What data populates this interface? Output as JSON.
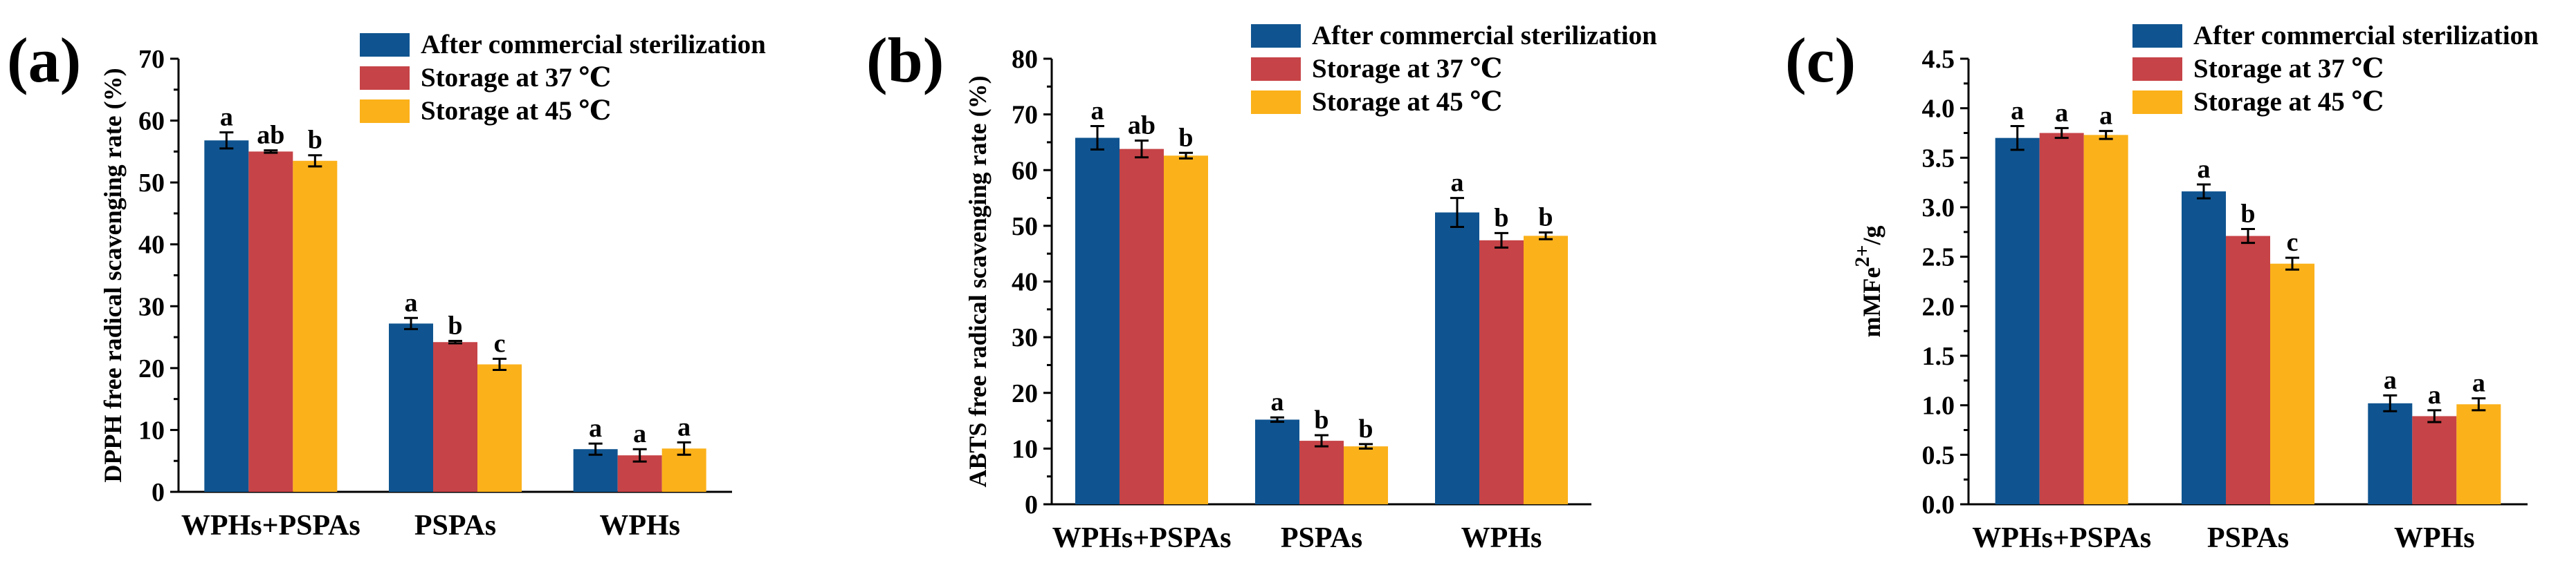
{
  "colors": {
    "series": [
      "#0f5490",
      "#c64347",
      "#fbb11a"
    ],
    "axis": "#000000",
    "background": "#ffffff"
  },
  "chart_data": [
    {
      "type": "bar",
      "panel": "(a)",
      "title": "",
      "xlabel": "",
      "ylabel": "DPPH free radical scavenging rate (%)",
      "ylim": [
        0,
        70
      ],
      "yticks": [
        0,
        10,
        20,
        30,
        40,
        50,
        60,
        70
      ],
      "categories": [
        "WPHs+PSPAs",
        "PSPAs",
        "WPHs"
      ],
      "legend": {
        "placement": "top-right"
      },
      "series": [
        {
          "name": "After commercial sterilization",
          "values": [
            56.8,
            27.2,
            6.9
          ],
          "errors": [
            1.3,
            0.9,
            0.9
          ],
          "labels": [
            "a",
            "a",
            "a"
          ]
        },
        {
          "name": "Storage at 37 ℃",
          "values": [
            55.0,
            24.2,
            5.9
          ],
          "errors": [
            0.2,
            0.2,
            1.0
          ],
          "labels": [
            "ab",
            "b",
            "a"
          ]
        },
        {
          "name": "Storage at 45 ℃",
          "values": [
            53.5,
            20.6,
            7.0
          ],
          "errors": [
            0.9,
            0.9,
            1.0
          ],
          "labels": [
            "b",
            "c",
            "a"
          ]
        }
      ]
    },
    {
      "type": "bar",
      "panel": "(b)",
      "title": "",
      "xlabel": "",
      "ylabel": "ABTS free radical scavenging rate (%)",
      "ylim": [
        0,
        80
      ],
      "yticks": [
        0,
        10,
        20,
        30,
        40,
        50,
        60,
        70,
        80
      ],
      "categories": [
        "WPHs+PSPAs",
        "PSPAs",
        "WPHs"
      ],
      "legend": {
        "placement": "top-right"
      },
      "series": [
        {
          "name": "After commercial sterilization",
          "values": [
            65.8,
            15.2,
            52.4
          ],
          "errors": [
            2.1,
            0.4,
            2.6
          ],
          "labels": [
            "a",
            "a",
            "a"
          ]
        },
        {
          "name": "Storage at 37 ℃",
          "values": [
            63.8,
            11.4,
            47.4
          ],
          "errors": [
            1.5,
            1.0,
            1.3
          ],
          "labels": [
            "ab",
            "b",
            "b"
          ]
        },
        {
          "name": "Storage at 45 ℃",
          "values": [
            62.6,
            10.4,
            48.2
          ],
          "errors": [
            0.5,
            0.4,
            0.6
          ],
          "labels": [
            "b",
            "b",
            "b"
          ]
        }
      ]
    },
    {
      "type": "bar",
      "panel": "(c)",
      "title": "",
      "xlabel": "",
      "ylabel": "mMFe2+/g",
      "ylabel_base": "mMFe",
      "ylabel_sup": "2+",
      "ylabel_end": "/g",
      "ylim": [
        0,
        4.5
      ],
      "yticks": [
        0.0,
        0.5,
        1.0,
        1.5,
        2.0,
        2.5,
        3.0,
        3.5,
        4.0,
        4.5
      ],
      "ytick_labels": [
        "0.0",
        "0.5",
        "1.0",
        "1.5",
        "2.0",
        "2.5",
        "3.0",
        "3.5",
        "4.0",
        "4.5"
      ],
      "categories": [
        "WPHs+PSPAs",
        "PSPAs",
        "WPHs"
      ],
      "legend": {
        "placement": "top-right"
      },
      "series": [
        {
          "name": "After commercial sterilization",
          "values": [
            3.7,
            3.16,
            1.02
          ],
          "errors": [
            0.12,
            0.07,
            0.08
          ],
          "labels": [
            "a",
            "a",
            "a"
          ]
        },
        {
          "name": "Storage at 37 ℃",
          "values": [
            3.75,
            2.71,
            0.89
          ],
          "errors": [
            0.05,
            0.07,
            0.06
          ],
          "labels": [
            "a",
            "b",
            "a"
          ]
        },
        {
          "name": "Storage at 45 ℃",
          "values": [
            3.73,
            2.43,
            1.01
          ],
          "errors": [
            0.04,
            0.06,
            0.06
          ],
          "labels": [
            "a",
            "c",
            "a"
          ]
        }
      ]
    }
  ]
}
